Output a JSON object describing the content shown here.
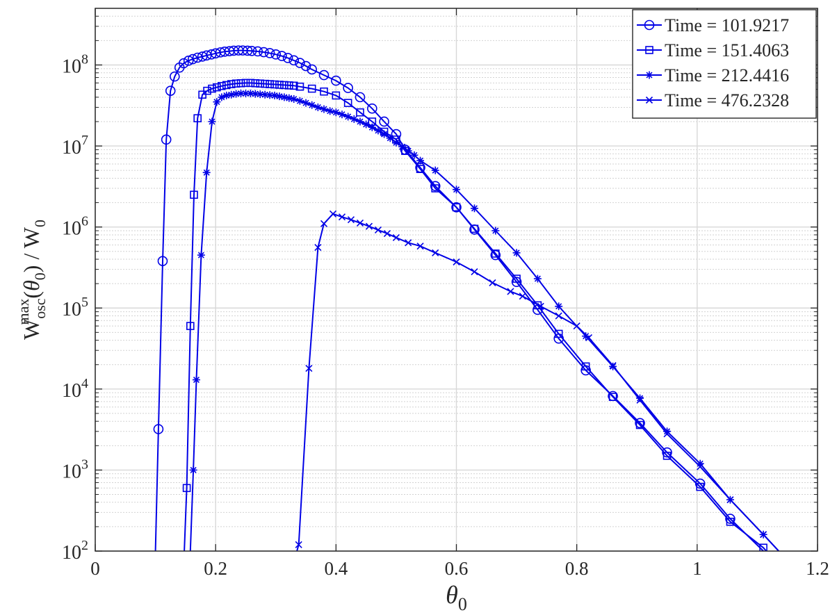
{
  "chart_data": {
    "type": "line",
    "xlabel": "θ",
    "xlabel_sub": "0",
    "ylabel": {
      "base": "W",
      "sup": "max",
      "sub": "osc",
      "arg_open": "(",
      "arg": "θ",
      "arg_sub": "0",
      "arg_close": ")",
      "divider": " / ",
      "den": "W",
      "den_sub": "0"
    },
    "xlim": [
      0,
      1.2
    ],
    "ylim": [
      100,
      500000000
    ],
    "yscale": "log",
    "grid": true,
    "legend_position": "top-right",
    "x_ticks": [
      {
        "v": 0,
        "label": "0"
      },
      {
        "v": 0.2,
        "label": "0.2"
      },
      {
        "v": 0.4,
        "label": "0.4"
      },
      {
        "v": 0.6,
        "label": "0.6"
      },
      {
        "v": 0.8,
        "label": "0.8"
      },
      {
        "v": 1.0,
        "label": "1"
      },
      {
        "v": 1.2,
        "label": "1.2"
      }
    ],
    "y_ticks": [
      {
        "exp": 2,
        "base": "10",
        "sup": "2"
      },
      {
        "exp": 3,
        "base": "10",
        "sup": "3"
      },
      {
        "exp": 4,
        "base": "10",
        "sup": "4"
      },
      {
        "exp": 5,
        "base": "10",
        "sup": "5"
      },
      {
        "exp": 6,
        "base": "10",
        "sup": "6"
      },
      {
        "exp": 7,
        "base": "10",
        "sup": "7"
      },
      {
        "exp": 8,
        "base": "10",
        "sup": "8"
      }
    ],
    "line_color": "#0000E6",
    "series": [
      {
        "name": "Time = 101.9217",
        "marker": "circle",
        "x": [
          0.1,
          0.105,
          0.112,
          0.118,
          0.125,
          0.132,
          0.14,
          0.147,
          0.155,
          0.162,
          0.17,
          0.178,
          0.185,
          0.193,
          0.2,
          0.208,
          0.215,
          0.223,
          0.23,
          0.238,
          0.245,
          0.253,
          0.26,
          0.27,
          0.28,
          0.29,
          0.3,
          0.31,
          0.32,
          0.33,
          0.34,
          0.35,
          0.36,
          0.38,
          0.4,
          0.42,
          0.44,
          0.46,
          0.48,
          0.5,
          0.515,
          0.54,
          0.565,
          0.6,
          0.63,
          0.665,
          0.7,
          0.735,
          0.77,
          0.815,
          0.86,
          0.905,
          0.95,
          1.005,
          1.055,
          1.11,
          1.155
        ],
        "y": [
          100,
          3200,
          380000,
          12000000,
          48000000,
          72000000,
          93000000,
          105000000,
          113000000,
          118000000,
          123000000,
          127000000,
          131000000,
          135000000,
          139000000,
          143000000,
          146000000,
          148000000,
          150000000,
          151000000,
          151000000,
          150000000,
          149000000,
          147000000,
          144000000,
          140000000,
          135000000,
          129000000,
          122000000,
          114000000,
          106000000,
          97000000,
          88000000,
          75000000,
          64000000,
          52000000,
          40000000,
          29000000,
          20000000,
          14000000,
          9000000,
          5400000,
          3200000,
          1750000,
          930000,
          450000,
          210000,
          95000,
          42000,
          17000,
          8200,
          3800,
          1650,
          680,
          250,
          100,
          45
        ]
      },
      {
        "name": "Time = 151.4063",
        "marker": "square",
        "x": [
          0.148,
          0.152,
          0.158,
          0.164,
          0.17,
          0.178,
          0.186,
          0.194,
          0.202,
          0.21,
          0.218,
          0.226,
          0.234,
          0.242,
          0.25,
          0.258,
          0.266,
          0.274,
          0.282,
          0.29,
          0.298,
          0.306,
          0.314,
          0.322,
          0.33,
          0.34,
          0.36,
          0.38,
          0.4,
          0.42,
          0.44,
          0.46,
          0.48,
          0.5,
          0.515,
          0.54,
          0.565,
          0.6,
          0.63,
          0.665,
          0.7,
          0.735,
          0.77,
          0.815,
          0.86,
          0.905,
          0.95,
          1.005,
          1.055,
          1.11,
          1.155
        ],
        "y": [
          100,
          600,
          60000,
          2500000,
          22000000,
          43000000,
          48000000,
          51000000,
          53000000,
          55000000,
          56500000,
          58000000,
          59000000,
          59500000,
          60000000,
          60000000,
          59500000,
          59000000,
          58500000,
          58000000,
          57500000,
          57000000,
          56500000,
          56000000,
          55500000,
          54000000,
          51000000,
          47000000,
          42000000,
          34000000,
          26000000,
          20000000,
          15000000,
          12000000,
          8700000,
          5200000,
          3000000,
          1750000,
          950000,
          470000,
          230000,
          108000,
          48000,
          19000,
          8000,
          3600,
          1500,
          620,
          230,
          110,
          45
        ]
      },
      {
        "name": "Time = 212.4416",
        "marker": "star",
        "x": [
          0.158,
          0.163,
          0.168,
          0.176,
          0.185,
          0.194,
          0.202,
          0.21,
          0.218,
          0.226,
          0.234,
          0.242,
          0.25,
          0.258,
          0.266,
          0.274,
          0.282,
          0.29,
          0.298,
          0.306,
          0.314,
          0.322,
          0.33,
          0.34,
          0.35,
          0.36,
          0.37,
          0.38,
          0.39,
          0.4,
          0.41,
          0.42,
          0.43,
          0.44,
          0.45,
          0.46,
          0.47,
          0.48,
          0.49,
          0.5,
          0.51,
          0.52,
          0.53,
          0.54,
          0.565,
          0.6,
          0.63,
          0.665,
          0.7,
          0.735,
          0.77,
          0.815,
          0.86,
          0.905,
          0.95,
          1.005,
          1.055,
          1.11,
          1.155
        ],
        "y": [
          100,
          1000,
          13000,
          450000,
          4700000,
          20000000,
          35000000,
          40000000,
          42000000,
          43000000,
          44000000,
          44500000,
          44500000,
          44500000,
          44000000,
          43500000,
          43000000,
          42500000,
          42000000,
          41000000,
          40000000,
          39000000,
          38000000,
          36000000,
          34000000,
          32000000,
          30000000,
          28500000,
          27000000,
          26000000,
          24500000,
          23000000,
          21500000,
          20000000,
          18500000,
          17000000,
          15500000,
          14000000,
          12500000,
          11000000,
          9800000,
          8700000,
          7700000,
          6600000,
          5000000,
          2900000,
          1700000,
          900000,
          480000,
          230000,
          105000,
          45000,
          19000,
          7700,
          3000,
          1200,
          430,
          160,
          70
        ]
      },
      {
        "name": "Time = 476.2328",
        "marker": "x",
        "x": [
          0.335,
          0.338,
          0.355,
          0.37,
          0.38,
          0.395,
          0.41,
          0.425,
          0.44,
          0.455,
          0.47,
          0.485,
          0.5,
          0.52,
          0.54,
          0.565,
          0.6,
          0.63,
          0.66,
          0.69,
          0.71,
          0.74,
          0.77,
          0.8,
          0.82,
          0.86,
          0.905,
          0.95,
          1.005,
          1.055,
          1.11,
          1.155
        ],
        "y": [
          100,
          120,
          18000,
          560000,
          1100000,
          1450000,
          1330000,
          1230000,
          1120000,
          1020000,
          920000,
          830000,
          740000,
          640000,
          580000,
          480000,
          370000,
          280000,
          205000,
          160000,
          140000,
          105000,
          80000,
          60000,
          43000,
          19500,
          7300,
          2800,
          1100,
          430,
          160,
          70
        ]
      }
    ]
  }
}
